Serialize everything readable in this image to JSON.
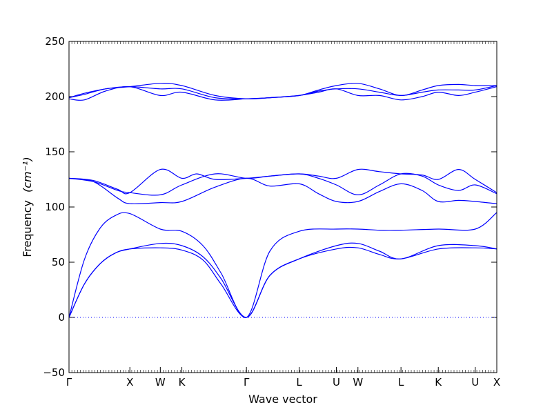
{
  "chart_data": {
    "type": "line",
    "title": "",
    "xlabel": "Wave vector",
    "ylabel": "Frequency",
    "ylabel_unit": "(cm⁻¹)",
    "ylim": [
      -50,
      250
    ],
    "yticks": [
      -50,
      0,
      50,
      100,
      150,
      200,
      250
    ],
    "grid": false,
    "line_color": "#0000ff",
    "zero_line": {
      "y": 0,
      "style": "dotted",
      "color": "#0000ff"
    },
    "x_labels": [
      {
        "label": "Γ",
        "x": 0
      },
      {
        "label": "X",
        "x": 1
      },
      {
        "label": "W",
        "x": 1.5
      },
      {
        "label": "K",
        "x": 1.854
      },
      {
        "label": "Γ",
        "x": 2.915
      },
      {
        "label": "L",
        "x": 3.781
      },
      {
        "label": "U",
        "x": 4.393
      },
      {
        "label": "W",
        "x": 4.747
      },
      {
        "label": "L",
        "x": 5.454
      },
      {
        "label": "K",
        "x": 6.067
      },
      {
        "label": "U",
        "x": 6.674
      },
      {
        "label": "X",
        "x": 7.028
      }
    ],
    "xlim": [
      0,
      7.028
    ],
    "bands": [
      {
        "x": [
          0,
          0.25,
          0.5,
          0.75,
          1,
          1.5,
          1.854,
          2.2,
          2.5,
          2.915,
          3.3,
          3.781,
          4.393,
          4.747,
          5.1,
          5.454,
          6.067,
          6.674,
          7.028
        ],
        "y": [
          0,
          30,
          48,
          58,
          62,
          63,
          61,
          52,
          30,
          0,
          38,
          53,
          62,
          63,
          57,
          53,
          62,
          63,
          62
        ]
      },
      {
        "x": [
          0,
          0.25,
          0.5,
          0.75,
          1,
          1.5,
          1.854,
          2.2,
          2.5,
          2.915,
          3.3,
          3.781,
          4.393,
          4.747,
          5.1,
          5.454,
          6.067,
          6.674,
          7.028
        ],
        "y": [
          0,
          30,
          48,
          58,
          62,
          67,
          65,
          55,
          35,
          0,
          38,
          53,
          65,
          67,
          60,
          53,
          65,
          65,
          62
        ]
      },
      {
        "x": [
          0,
          0.25,
          0.5,
          0.75,
          1,
          1.5,
          1.854,
          2.2,
          2.5,
          2.915,
          3.3,
          3.781,
          4.393,
          4.747,
          5.1,
          5.454,
          6.067,
          6.674,
          7.028
        ],
        "y": [
          0,
          52,
          80,
          92,
          94,
          80,
          78,
          65,
          40,
          0,
          60,
          78,
          80,
          80,
          79,
          79,
          80,
          80,
          95
        ]
      },
      {
        "x": [
          0,
          0.4,
          0.8,
          1,
          1.5,
          1.854,
          2.4,
          2.915,
          3.3,
          3.781,
          4.1,
          4.393,
          4.747,
          5.1,
          5.454,
          5.8,
          6.067,
          6.4,
          6.674,
          7.028
        ],
        "y": [
          126,
          123,
          108,
          103,
          104,
          105,
          118,
          126,
          119,
          121,
          112,
          105,
          105,
          114,
          121,
          115,
          105,
          106,
          105,
          103
        ]
      },
      {
        "x": [
          0,
          0.4,
          0.8,
          1,
          1.5,
          1.854,
          2.4,
          2.915,
          3.3,
          3.781,
          4.1,
          4.393,
          4.747,
          5.1,
          5.454,
          5.8,
          6.067,
          6.4,
          6.674,
          7.028
        ],
        "y": [
          126,
          123,
          115,
          113,
          111,
          120,
          130,
          126,
          128,
          130,
          126,
          120,
          111,
          120,
          130,
          128,
          120,
          115,
          120,
          112
        ]
      },
      {
        "x": [
          0,
          0.4,
          0.8,
          1,
          1.5,
          1.854,
          2.1,
          2.4,
          2.915,
          3.3,
          3.781,
          4.1,
          4.393,
          4.747,
          5.1,
          5.454,
          5.8,
          6.067,
          6.4,
          6.674,
          7.028
        ],
        "y": [
          126,
          124,
          116,
          113,
          134,
          126,
          130,
          125,
          126,
          128,
          130,
          128,
          126,
          134,
          132,
          130,
          129,
          125,
          134,
          125,
          113
        ]
      },
      {
        "x": [
          0,
          0.25,
          0.6,
          1,
          1.5,
          1.854,
          2.4,
          2.915,
          3.3,
          3.781,
          4.1,
          4.393,
          4.747,
          5.1,
          5.454,
          5.8,
          6.067,
          6.4,
          6.674,
          7.028
        ],
        "y": [
          198,
          197,
          205,
          209,
          201,
          204,
          197,
          198,
          199,
          201,
          204,
          207,
          201,
          201,
          197,
          200,
          204,
          201,
          204,
          209
        ]
      },
      {
        "x": [
          0,
          0.25,
          0.6,
          1,
          1.5,
          1.854,
          2.4,
          2.915,
          3.3,
          3.781,
          4.1,
          4.393,
          4.747,
          5.1,
          5.454,
          5.8,
          6.067,
          6.4,
          6.674,
          7.028
        ],
        "y": [
          199,
          202,
          207,
          209,
          207,
          207,
          199,
          198,
          199,
          201,
          205,
          207,
          207,
          204,
          201,
          204,
          206,
          206,
          206,
          210
        ]
      },
      {
        "x": [
          0,
          0.25,
          0.6,
          1,
          1.5,
          1.854,
          2.4,
          2.915,
          3.3,
          3.781,
          4.1,
          4.393,
          4.747,
          5.1,
          5.454,
          5.8,
          6.067,
          6.4,
          6.674,
          7.028
        ],
        "y": [
          199,
          203,
          207,
          209,
          212,
          210,
          201,
          198,
          199,
          201,
          206,
          210,
          212,
          207,
          201,
          206,
          210,
          211,
          210,
          210
        ]
      }
    ]
  }
}
